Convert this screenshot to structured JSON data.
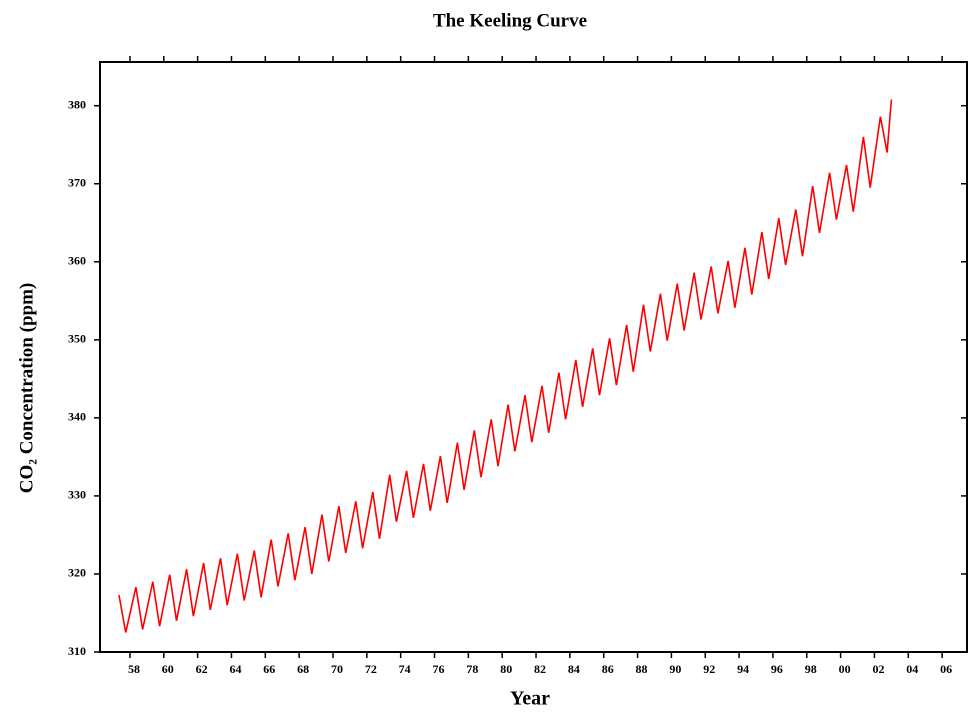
{
  "chart_data": {
    "type": "line",
    "title": "The Keeling Curve",
    "xlabel": "Year",
    "ylabel": "CO₂ Concentration (ppm)",
    "xlim": [
      1956.23,
      2007.47
    ],
    "ylim": [
      310,
      385.6
    ],
    "xticks": [
      {
        "value": 1958,
        "label": "58"
      },
      {
        "value": 1960,
        "label": "60"
      },
      {
        "value": 1962,
        "label": "62"
      },
      {
        "value": 1964,
        "label": "64"
      },
      {
        "value": 1966,
        "label": "66"
      },
      {
        "value": 1968,
        "label": "68"
      },
      {
        "value": 1970,
        "label": "70"
      },
      {
        "value": 1972,
        "label": "72"
      },
      {
        "value": 1974,
        "label": "74"
      },
      {
        "value": 1976,
        "label": "76"
      },
      {
        "value": 1978,
        "label": "78"
      },
      {
        "value": 1980,
        "label": "80"
      },
      {
        "value": 1982,
        "label": "82"
      },
      {
        "value": 1984,
        "label": "84"
      },
      {
        "value": 1986,
        "label": "86"
      },
      {
        "value": 1988,
        "label": "88"
      },
      {
        "value": 1990,
        "label": "90"
      },
      {
        "value": 1992,
        "label": "92"
      },
      {
        "value": 1994,
        "label": "94"
      },
      {
        "value": 1996,
        "label": "96"
      },
      {
        "value": 1998,
        "label": "98"
      },
      {
        "value": 2000,
        "label": "00"
      },
      {
        "value": 2002,
        "label": "02"
      },
      {
        "value": 2004,
        "label": "04"
      },
      {
        "value": 2006,
        "label": "06"
      }
    ],
    "yticks": [
      310,
      320,
      330,
      340,
      350,
      360,
      370,
      380
    ],
    "color": "#ff0000",
    "x": [
      1957.35,
      1957.75,
      1958.35,
      1958.75,
      1959.35,
      1959.75,
      1960.35,
      1960.75,
      1961.35,
      1961.75,
      1962.35,
      1962.75,
      1963.35,
      1963.75,
      1964.35,
      1964.75,
      1965.35,
      1965.75,
      1966.35,
      1966.75,
      1967.35,
      1967.75,
      1968.35,
      1968.75,
      1969.35,
      1969.75,
      1970.35,
      1970.75,
      1971.35,
      1971.75,
      1972.35,
      1972.75,
      1973.35,
      1973.75,
      1974.35,
      1974.75,
      1975.35,
      1975.75,
      1976.35,
      1976.75,
      1977.35,
      1977.75,
      1978.35,
      1978.75,
      1979.35,
      1979.75,
      1980.35,
      1980.75,
      1981.35,
      1981.75,
      1982.35,
      1982.75,
      1983.35,
      1983.75,
      1984.35,
      1984.75,
      1985.35,
      1985.75,
      1986.35,
      1986.75,
      1987.35,
      1987.75,
      1988.35,
      1988.75,
      1989.35,
      1989.75,
      1990.35,
      1990.75,
      1991.35,
      1991.75,
      1992.35,
      1992.75,
      1993.35,
      1993.75,
      1994.35,
      1994.75,
      1995.35,
      1995.75,
      1996.35,
      1996.75,
      1997.35,
      1997.75,
      1998.35,
      1998.75,
      1999.35,
      1999.75,
      2000.35,
      2000.75,
      2001.35,
      2001.75,
      2002.35,
      2002.75,
      2003.0
    ],
    "values": [
      317.3,
      312.5,
      318.3,
      312.9,
      319.0,
      313.3,
      319.9,
      314.0,
      320.6,
      314.6,
      321.4,
      315.4,
      322.0,
      316.0,
      322.6,
      316.6,
      323.0,
      317.0,
      324.4,
      318.4,
      325.2,
      319.2,
      326.0,
      320.0,
      327.6,
      321.6,
      328.7,
      322.7,
      329.3,
      323.3,
      330.5,
      324.5,
      332.7,
      326.7,
      333.2,
      327.2,
      334.1,
      328.1,
      335.1,
      329.1,
      336.8,
      330.8,
      338.4,
      332.4,
      339.8,
      333.8,
      341.7,
      335.7,
      342.9,
      336.9,
      344.1,
      338.1,
      345.8,
      339.8,
      347.4,
      341.4,
      348.9,
      342.9,
      350.2,
      344.2,
      351.9,
      345.9,
      354.5,
      348.5,
      355.9,
      349.9,
      357.2,
      351.2,
      358.6,
      352.6,
      359.4,
      353.4,
      360.1,
      354.1,
      361.8,
      355.8,
      363.8,
      357.8,
      365.6,
      359.6,
      366.7,
      360.7,
      369.7,
      363.7,
      371.4,
      365.4,
      372.4,
      366.4,
      376.0,
      369.5,
      378.6,
      374.0,
      380.8
    ]
  }
}
